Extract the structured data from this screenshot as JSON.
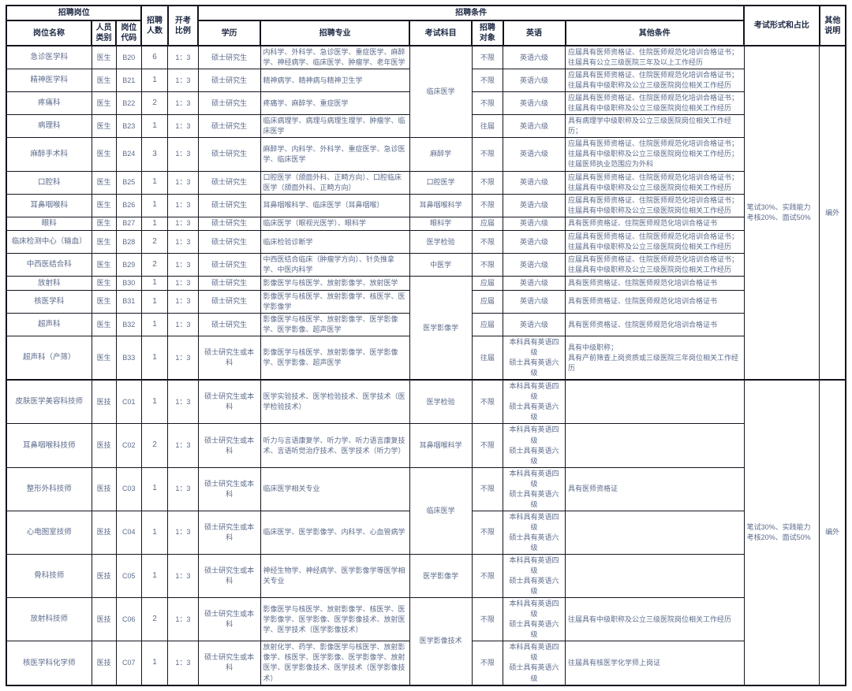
{
  "table": {
    "header": {
      "group_job": "招聘岗位",
      "col_job_name": "岗位名称",
      "col_person_type": "人员\n类别",
      "col_job_code": "岗位\n代码",
      "col_headcount": "招聘\n人数",
      "col_ratio": "开考\n比例",
      "group_conditions": "招聘条件",
      "col_education": "学历",
      "col_major": "招聘专业",
      "col_exam_subject": "考试科目",
      "col_target": "招聘\n对象",
      "col_english": "英语",
      "col_other_conditions": "其他条件",
      "col_exam_form": "考试形式和占比",
      "col_other_note": "其他\n说明"
    },
    "colors": {
      "border": "#14141f",
      "header_text": "#1c2742",
      "body_text": "#5c6b8b"
    },
    "rows": [
      {
        "name": "急诊医学科",
        "type": "医生",
        "code": "B20",
        "count": "6",
        "ratio": "1：3",
        "education": "硕士研究生",
        "major": "内科学、外科学、急诊医学、重症医学、麻醉学、神经病学、临床医学、肿瘤学、老年医学",
        "subject": {
          "text": "临床医学",
          "rowspan": 4
        },
        "target": "不限",
        "english": "英语六级",
        "other": "应届具有医师资格证、住院医师规范化培训合格证书；\n往届具有公立三级医院三年及以上工作经历",
        "exam_form": {
          "text": "笔试30%、实践能力考核20%、面试50%",
          "rowspan": 14
        },
        "note": {
          "text": "编外",
          "rowspan": 14
        },
        "section_start": false
      },
      {
        "name": "精神医学科",
        "type": "医生",
        "code": "B21",
        "count": "1",
        "ratio": "1：3",
        "education": "硕士研究生",
        "major": "精神病学、精神病与精神卫生学",
        "subject": null,
        "target": "不限",
        "english": "英语六级",
        "other": "应届具有医师资格证、住院医师规范化培训合格证书；\n往届具有中级职称及公立三级医院岗位相关工作经历",
        "exam_form": null,
        "note": null,
        "section_start": false
      },
      {
        "name": "疼痛科",
        "type": "医生",
        "code": "B22",
        "count": "2",
        "ratio": "1：3",
        "education": "硕士研究生",
        "major": "疼痛学、麻醉学、重症医学",
        "subject": null,
        "target": "不限",
        "english": "英语六级",
        "other": "应届具有医师资格证、住院医师规范化培训合格证书；\n往届具有中级职称及公立三级医院岗位相关工作经历",
        "exam_form": null,
        "note": null,
        "section_start": false
      },
      {
        "name": "病理科",
        "type": "医生",
        "code": "B23",
        "count": "1",
        "ratio": "1：3",
        "education": "硕士研究生",
        "major": "临床病理学、病理与病理生理学、肿瘤学、临床医学",
        "subject": null,
        "target": "往届",
        "english": "英语六级",
        "other": "具有病理学中级职称及公立三级医院岗位相关工作经历；",
        "exam_form": null,
        "note": null,
        "section_start": false
      },
      {
        "name": "麻醉手术科",
        "type": "医生",
        "code": "B24",
        "count": "3",
        "ratio": "1：3",
        "education": "硕士研究生",
        "major": "麻醉学、内科学、外科学、重症医学、急诊医学、临床医学",
        "subject": {
          "text": "麻醉学",
          "rowspan": 1
        },
        "target": "不限",
        "english": "英语六级",
        "other": "应届具有医师资格证、住院医师规范化培训合格证书；\n往届具有中级职称及公立三级医院岗位相关工作经历；\n往届医师执业范围应为外科",
        "exam_form": null,
        "note": null,
        "section_start": false
      },
      {
        "name": "口腔科",
        "type": "医生",
        "code": "B25",
        "count": "1",
        "ratio": "1：3",
        "education": "硕士研究生",
        "major": "口腔医学（颌面外科、正畸方向）、口腔临床医学（颌面外科、正畸方向）",
        "subject": {
          "text": "口腔医学",
          "rowspan": 1
        },
        "target": "不限",
        "english": "英语六级",
        "other": "应届具有医师资格证、住院医师规范化培训合格证书；\n往届具有中级职称及公立三级医院岗位相关工作经历",
        "exam_form": null,
        "note": null,
        "section_start": false
      },
      {
        "name": "耳鼻咽喉科",
        "type": "医生",
        "code": "B26",
        "count": "1",
        "ratio": "1：3",
        "education": "硕士研究生",
        "major": "耳鼻咽喉科学、临床医学（耳鼻咽喉）",
        "subject": {
          "text": "耳鼻咽喉科学",
          "rowspan": 1
        },
        "target": "不限",
        "english": "英语六级",
        "other": "应届具有医师资格证、住院医师规范化培训合格证书；\n往届具有中级职称及公立三级医院岗位相关工作经历",
        "exam_form": null,
        "note": null,
        "section_start": false
      },
      {
        "name": "眼科",
        "type": "医生",
        "code": "B27",
        "count": "1",
        "ratio": "1：3",
        "education": "硕士研究生",
        "major": "临床医学（眼视光医学）、眼科学",
        "subject": {
          "text": "眼科学",
          "rowspan": 1
        },
        "target": "应届",
        "english": "英语六级",
        "other": "具有医师资格证、住院医师规范化培训合格证书",
        "exam_form": null,
        "note": null,
        "section_start": false
      },
      {
        "name": "临床检测中心（输血）",
        "type": "医生",
        "code": "B28",
        "count": "2",
        "ratio": "1：3",
        "education": "硕士研究生",
        "major": "临床检验诊断学",
        "subject": {
          "text": "医学检验",
          "rowspan": 1
        },
        "target": "不限",
        "english": "英语六级",
        "other": "应届具有医师资格证、住院医师规范化培训合格证书；\n往届具有中级职称及公立三级医院岗位相关工作经历",
        "exam_form": null,
        "note": null,
        "section_start": false
      },
      {
        "name": "中西医结合科",
        "type": "医生",
        "code": "B29",
        "count": "2",
        "ratio": "1：3",
        "education": "硕士研究生",
        "major": "中西医结合临床（肿瘤学方向）、针灸推拿学、中医内科学",
        "subject": {
          "text": "中医学",
          "rowspan": 1
        },
        "target": "不限",
        "english": "英语六级",
        "other": "应届具有医师资格证、住院医师规范化培训合格证书；\n往届具有中级职称及公立三级医院岗位相关工作经历",
        "exam_form": null,
        "note": null,
        "section_start": false
      },
      {
        "name": "放射科",
        "type": "医生",
        "code": "B30",
        "count": "1",
        "ratio": "1：3",
        "education": "硕士研究生",
        "major": "影像医学与核医学、放射影像学、放射医学",
        "subject": {
          "text": "医学影像学",
          "rowspan": 4
        },
        "target": "应届",
        "english": "英语六级",
        "other": "具有医师资格证、住院医师规范化培训合格证书",
        "exam_form": null,
        "note": null,
        "section_start": false
      },
      {
        "name": "核医学科",
        "type": "医生",
        "code": "B31",
        "count": "1",
        "ratio": "1：3",
        "education": "硕士研究生",
        "major": "影像医学与核医学、放射影像学、核医学、医学影像学",
        "subject": null,
        "target": "应届",
        "english": "英语六级",
        "other": "具有医师资格证、住院医师规范化培训合格证书",
        "exam_form": null,
        "note": null,
        "section_start": false
      },
      {
        "name": "超声科",
        "type": "医生",
        "code": "B32",
        "count": "1",
        "ratio": "1：3",
        "education": "硕士研究生",
        "major": "影像医学与核医学、放射影像学、医学影像学、医学影像、超声医学",
        "subject": null,
        "target": "应届",
        "english": "英语六级",
        "other": "具有医师资格证、住院医师规范化培训合格证书",
        "exam_form": null,
        "note": null,
        "section_start": false
      },
      {
        "name": "超声科（产筛）",
        "type": "医生",
        "code": "B33",
        "count": "1",
        "ratio": "1：3",
        "education": "硕士研究生或本科",
        "major": "影像医学与核医学、放射影像学、医学影像学、医学影像、超声医学",
        "subject": null,
        "target": "往届",
        "english": "本科具有英语四级\n硕士具有英语六级",
        "other": "具有中级职称；\n具有产前筛查上岗资质或三级医院三年岗位相关工作经历",
        "exam_form": null,
        "note": null,
        "section_start": false
      },
      {
        "name": "皮肤医学美容科技师",
        "type": "医技",
        "code": "C01",
        "count": "1",
        "ratio": "1：3",
        "education": "硕士研究生或本科",
        "major": "医学实验技术、医学检验技术、医学技术（医学检验技术）",
        "subject": {
          "text": "医学检验",
          "rowspan": 1
        },
        "target": "不限",
        "english": "本科具有英语四级\n硕士具有英语六级",
        "other": "",
        "exam_form": {
          "text": "笔试30%、实践能力考核20%、面试50%",
          "rowspan": 7
        },
        "note": {
          "text": "编外",
          "rowspan": 7
        },
        "section_start": true
      },
      {
        "name": "耳鼻咽喉科技师",
        "type": "医技",
        "code": "C02",
        "count": "2",
        "ratio": "1：3",
        "education": "硕士研究生或本科",
        "major": "听力与言语康复学、听力学、听力语言康复技术、言语听觉治疗技术、医学技术（听力学）",
        "subject": {
          "text": "耳鼻咽喉科学",
          "rowspan": 1
        },
        "target": "不限",
        "english": "本科具有英语四级\n硕士具有英语六级",
        "other": "",
        "exam_form": null,
        "note": null,
        "section_start": false
      },
      {
        "name": "整形外科技师",
        "type": "医技",
        "code": "C03",
        "count": "1",
        "ratio": "1：3",
        "education": "硕士研究生或本科",
        "major": "临床医学相关专业",
        "subject": {
          "text": "临床医学",
          "rowspan": 2
        },
        "target": "不限",
        "english": "本科具有英语四级\n硕士具有英语六级",
        "other": "具有医师资格证",
        "exam_form": null,
        "note": null,
        "section_start": false
      },
      {
        "name": "心电图室技师",
        "type": "医技",
        "code": "C04",
        "count": "1",
        "ratio": "1：3",
        "education": "硕士研究生或本科",
        "major": "临床医学、医学影像学、内科学、心血管病学",
        "subject": null,
        "target": "不限",
        "english": "本科具有英语四级\n硕士具有英语六级",
        "other": "",
        "exam_form": null,
        "note": null,
        "section_start": false
      },
      {
        "name": "骨科技师",
        "type": "医技",
        "code": "C05",
        "count": "1",
        "ratio": "1：3",
        "education": "硕士研究生或本科",
        "major": "神经生物学、神经病学、医学影像学等医学相关专业",
        "subject": {
          "text": "医学影像学",
          "rowspan": 1
        },
        "target": "不限",
        "english": "本科具有英语四级\n硕士具有英语六级",
        "other": "",
        "exam_form": null,
        "note": null,
        "section_start": false
      },
      {
        "name": "放射科技师",
        "type": "医技",
        "code": "C06",
        "count": "2",
        "ratio": "1：3",
        "education": "硕士研究生或本科",
        "major": "影像医学与核医学、放射影像学、核医学、医学影像学、医学影像、医学影像技术、放射医学、医学技术（医学影像技术）",
        "subject": {
          "text": "医学影像技术",
          "rowspan": 2
        },
        "target": "不限",
        "english": "本科具有英语四级\n硕士具有英语六级",
        "other": "往届具有中级职称及公立三级医院岗位相关工作经历",
        "exam_form": null,
        "note": null,
        "section_start": false
      },
      {
        "name": "核医学科化学师",
        "type": "医技",
        "code": "C07",
        "count": "1",
        "ratio": "1：3",
        "education": "硕士研究生或本科",
        "major": "放射化学、药学、影像医学与核医学、放射影像学、核医学、医学影像、医学影像学、放射医学、医学影像技术、医学技术（医学影像技术）",
        "subject": null,
        "target": "不限",
        "english": "本科具有英语四级\n硕士具有英语六级",
        "other": "往届具有核医学化学师上岗证",
        "exam_form": null,
        "note": null,
        "section_start": false
      }
    ]
  }
}
